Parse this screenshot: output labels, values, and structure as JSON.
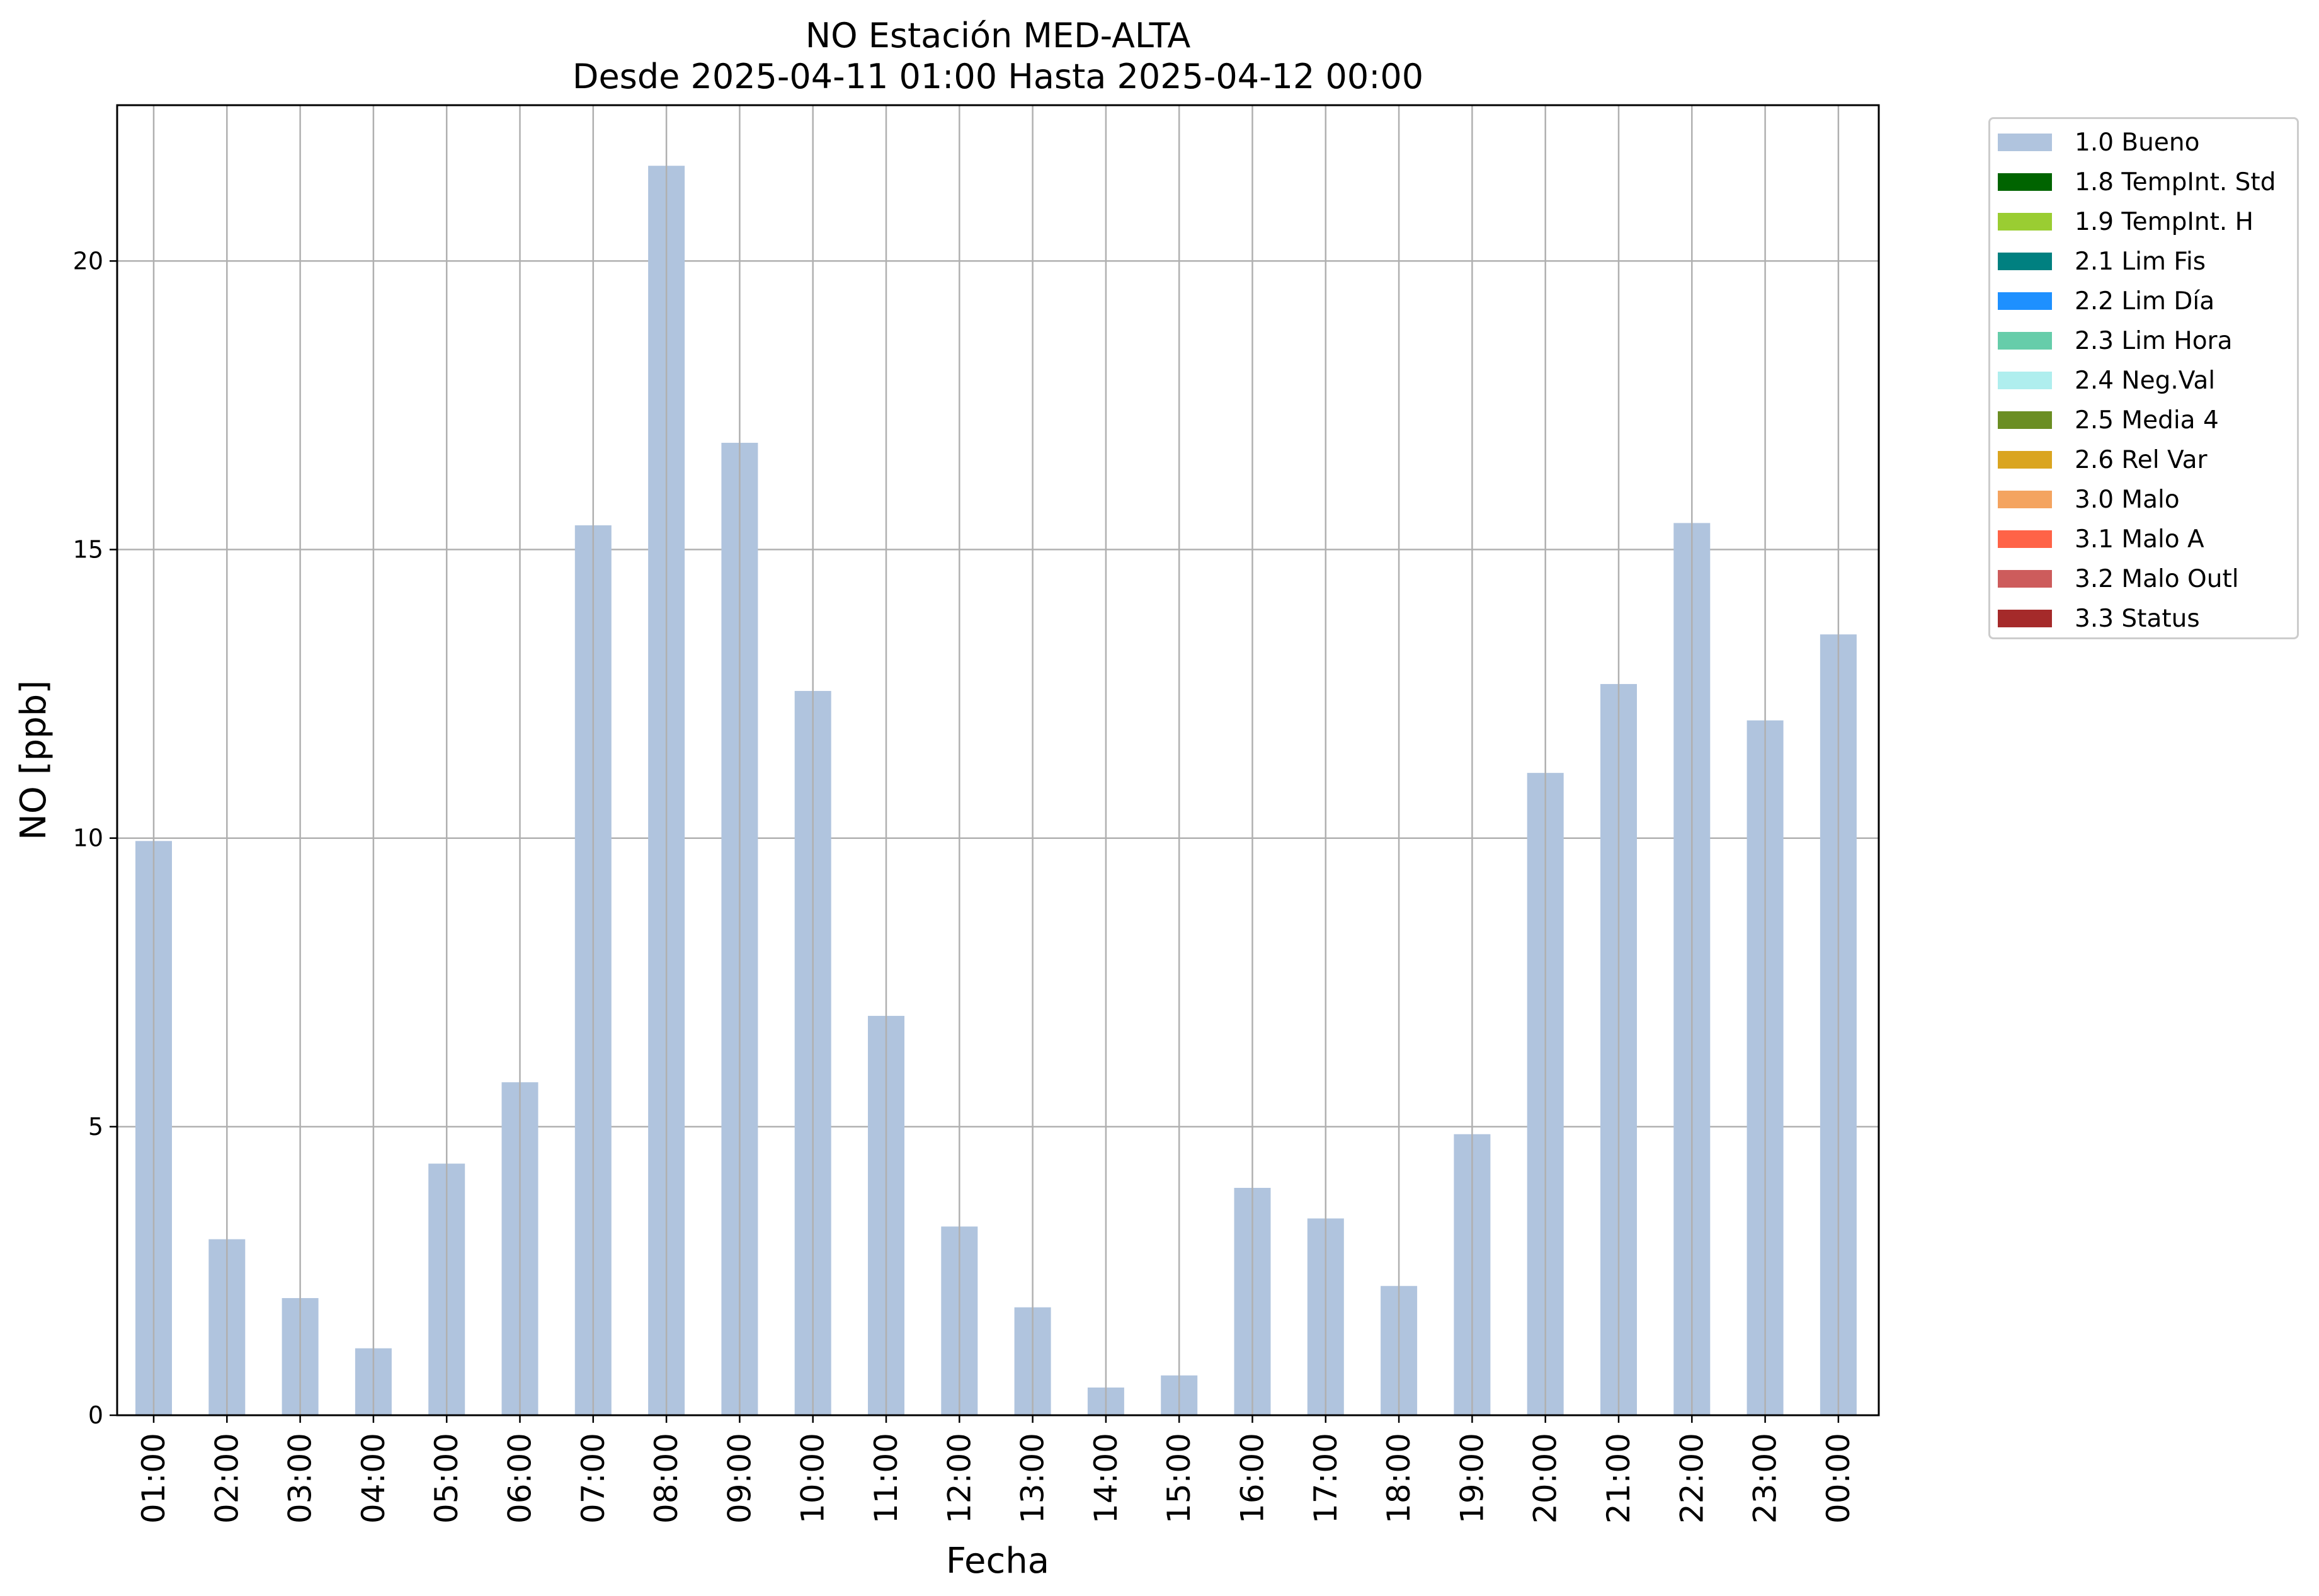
{
  "chart_data": {
    "type": "bar",
    "title": "NO Estación MED-ALTA",
    "subtitle": "Desde 2025-04-11 01:00 Hasta 2025-04-12 00:00",
    "xlabel": "Fecha",
    "ylabel": "NO [ppb]",
    "ylim": [
      0,
      22.7
    ],
    "yticks": [
      0,
      5,
      10,
      15,
      20
    ],
    "grid": true,
    "legend_position": "outside right, top",
    "categories": [
      "01:00",
      "02:00",
      "03:00",
      "04:00",
      "05:00",
      "06:00",
      "07:00",
      "08:00",
      "09:00",
      "10:00",
      "11:00",
      "12:00",
      "13:00",
      "14:00",
      "15:00",
      "16:00",
      "17:00",
      "18:00",
      "19:00",
      "20:00",
      "21:00",
      "22:00",
      "23:00",
      "00:00"
    ],
    "series": [
      {
        "name": "1.0 Bueno",
        "color": "#b0c4de",
        "values": [
          9.95,
          3.05,
          2.03,
          1.16,
          4.36,
          5.77,
          15.42,
          21.65,
          16.85,
          12.55,
          6.92,
          3.27,
          1.87,
          0.48,
          0.69,
          3.94,
          3.41,
          2.24,
          4.87,
          11.13,
          12.67,
          15.46,
          12.04,
          13.53
        ]
      }
    ],
    "legend": [
      {
        "label": "1.0 Bueno",
        "color": "#b0c4de"
      },
      {
        "label": "1.8 TempInt. Std",
        "color": "#006400"
      },
      {
        "label": "1.9 TempInt. H",
        "color": "#9acd32"
      },
      {
        "label": "2.1 Lim Fis",
        "color": "#008080"
      },
      {
        "label": "2.2 Lim Día",
        "color": "#1e90ff"
      },
      {
        "label": "2.3 Lim Hora",
        "color": "#66cdaa"
      },
      {
        "label": "2.4 Neg.Val",
        "color": "#afeeee"
      },
      {
        "label": "2.5 Media 4",
        "color": "#6b8e23"
      },
      {
        "label": "2.6 Rel Var",
        "color": "#daa520"
      },
      {
        "label": "3.0 Malo",
        "color": "#f4a460"
      },
      {
        "label": "3.1 Malo A",
        "color": "#ff6347"
      },
      {
        "label": "3.2 Malo Outl",
        "color": "#cd5c5c"
      },
      {
        "label": "3.3 Status",
        "color": "#a52a2a"
      }
    ]
  }
}
